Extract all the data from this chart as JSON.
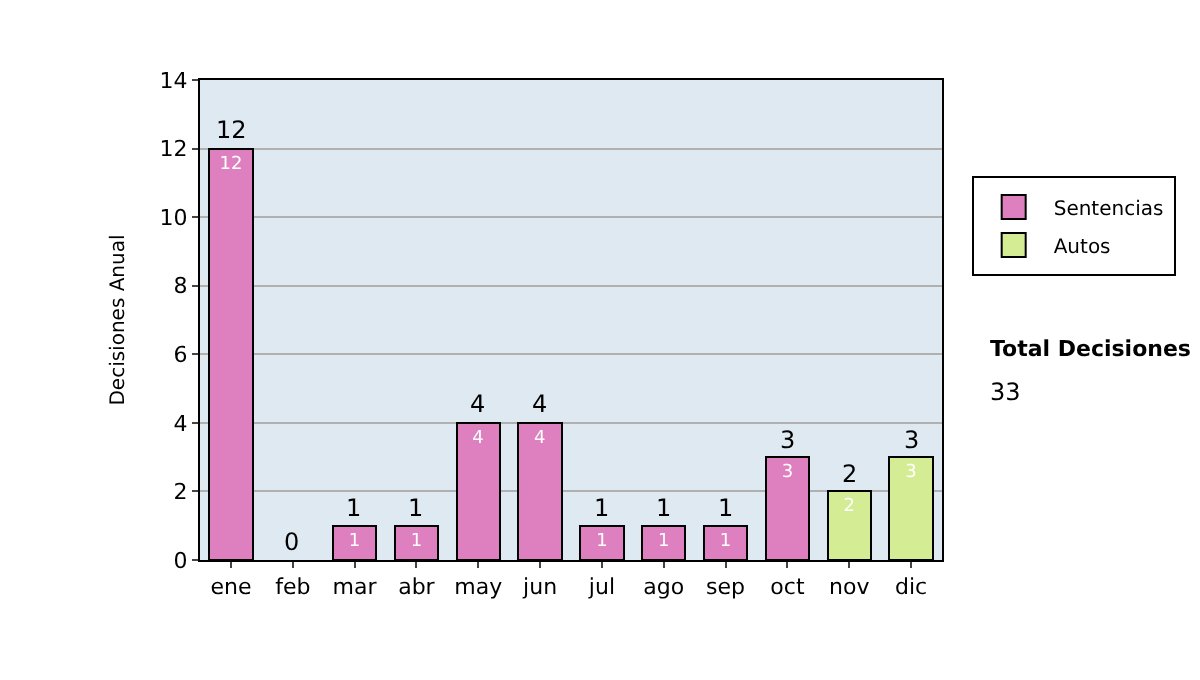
{
  "chart_data": {
    "type": "bar",
    "stacked": true,
    "ylabel": "Decisiones Anual",
    "categories": [
      "ene",
      "feb",
      "mar",
      "abr",
      "may",
      "jun",
      "jul",
      "ago",
      "sep",
      "oct",
      "nov",
      "dic"
    ],
    "series": [
      {
        "name": "Sentencias",
        "color": "#de7fbf",
        "values": [
          12,
          null,
          1,
          1,
          4,
          4,
          1,
          1,
          1,
          3,
          null,
          null
        ]
      },
      {
        "name": "Autos",
        "color": "#d4ec94",
        "values": [
          null,
          null,
          null,
          null,
          null,
          null,
          null,
          null,
          null,
          null,
          2,
          3
        ]
      }
    ],
    "data_labels": true,
    "totals": [
      "12",
      "0",
      "1",
      "1",
      "4",
      "4",
      "1",
      "1",
      "1",
      "3",
      "2",
      "3"
    ],
    "ylim": [
      0,
      14
    ],
    "yticks": [
      0,
      2,
      4,
      6,
      8,
      10,
      12,
      14
    ],
    "grid": "y",
    "legend": "right",
    "annotations": [
      "Total Decisiones",
      "33"
    ]
  }
}
